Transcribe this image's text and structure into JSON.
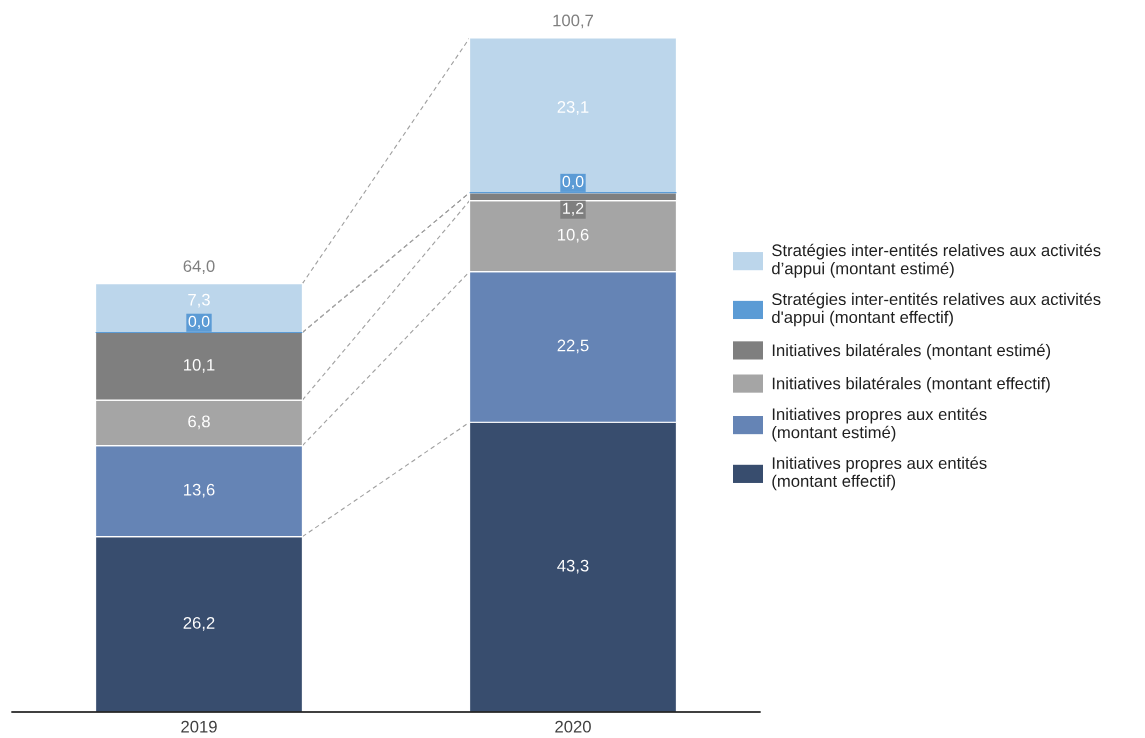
{
  "chart_data": {
    "type": "bar",
    "stacked": true,
    "categories": [
      "2019",
      "2020"
    ],
    "series": [
      {
        "name": "Initiatives propres aux entités (montant effectif)",
        "color": "#384d6e",
        "values": [
          26.2,
          43.3
        ],
        "value_labels": [
          "26,2",
          "43,3"
        ]
      },
      {
        "name": "Initiatives propres aux entités (montant estimé)",
        "color": "#6584b5",
        "values": [
          13.6,
          22.5
        ],
        "value_labels": [
          "13,6",
          "22,5"
        ]
      },
      {
        "name": "Initiatives bilatérales (montant effectif)",
        "color": "#a5a5a5",
        "values": [
          6.8,
          10.6
        ],
        "value_labels": [
          "6,8",
          "10,6"
        ]
      },
      {
        "name": "Initiatives bilatérales (montant estimé)",
        "color": "#7f7f7f",
        "values": [
          10.1,
          1.2
        ],
        "value_labels": [
          "10,1",
          "1,2"
        ]
      },
      {
        "name": "Stratégies inter-entités relatives aux activités d'appui (montant effectif)",
        "color": "#5b9bd5",
        "values": [
          0.0,
          0.0
        ],
        "value_labels": [
          "0,0",
          "0,0"
        ]
      },
      {
        "name": "Stratégies inter-entités relatives aux activités d’appui (montant estimé)",
        "color": "#bcd6eb",
        "values": [
          7.3,
          23.1
        ],
        "value_labels": [
          "7,3",
          "23,1"
        ]
      }
    ],
    "totals": [
      "64,0",
      "100,7"
    ],
    "legend": "right",
    "grid": false
  }
}
